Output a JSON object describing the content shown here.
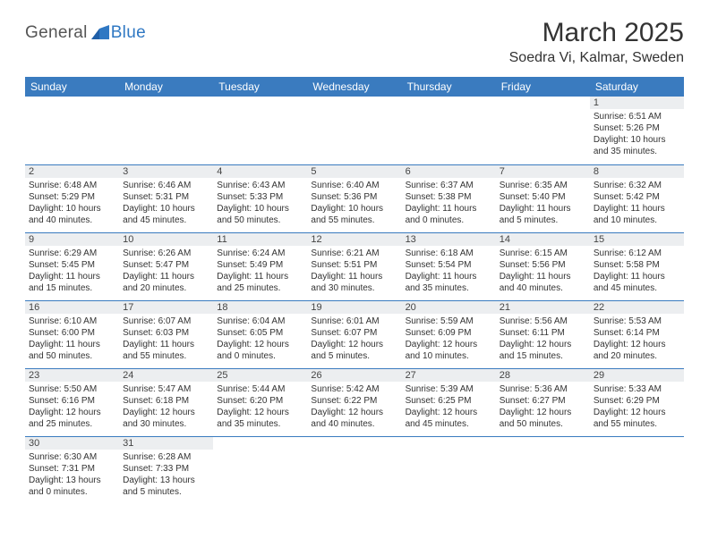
{
  "logo": {
    "general": "General",
    "blue": "Blue",
    "mark_color": "#1f5fa8"
  },
  "title": "March 2025",
  "location": "Soedra Vi, Kalmar, Sweden",
  "header_bg": "#3a7bbf",
  "header_text_color": "#ffffff",
  "cell_border_color": "#3a7bbf",
  "daynum_bg": "#eceef0",
  "background_color": "#ffffff",
  "text_color": "#333333",
  "fonts": {
    "title_size": 30,
    "location_size": 16,
    "header_size": 12,
    "daynum_size": 11,
    "info_size": 10
  },
  "weekdays": [
    "Sunday",
    "Monday",
    "Tuesday",
    "Wednesday",
    "Thursday",
    "Friday",
    "Saturday"
  ],
  "weeks": [
    [
      null,
      null,
      null,
      null,
      null,
      null,
      {
        "n": "1",
        "sunrise": "Sunrise: 6:51 AM",
        "sunset": "Sunset: 5:26 PM",
        "daylight": "Daylight: 10 hours and 35 minutes."
      }
    ],
    [
      {
        "n": "2",
        "sunrise": "Sunrise: 6:48 AM",
        "sunset": "Sunset: 5:29 PM",
        "daylight": "Daylight: 10 hours and 40 minutes."
      },
      {
        "n": "3",
        "sunrise": "Sunrise: 6:46 AM",
        "sunset": "Sunset: 5:31 PM",
        "daylight": "Daylight: 10 hours and 45 minutes."
      },
      {
        "n": "4",
        "sunrise": "Sunrise: 6:43 AM",
        "sunset": "Sunset: 5:33 PM",
        "daylight": "Daylight: 10 hours and 50 minutes."
      },
      {
        "n": "5",
        "sunrise": "Sunrise: 6:40 AM",
        "sunset": "Sunset: 5:36 PM",
        "daylight": "Daylight: 10 hours and 55 minutes."
      },
      {
        "n": "6",
        "sunrise": "Sunrise: 6:37 AM",
        "sunset": "Sunset: 5:38 PM",
        "daylight": "Daylight: 11 hours and 0 minutes."
      },
      {
        "n": "7",
        "sunrise": "Sunrise: 6:35 AM",
        "sunset": "Sunset: 5:40 PM",
        "daylight": "Daylight: 11 hours and 5 minutes."
      },
      {
        "n": "8",
        "sunrise": "Sunrise: 6:32 AM",
        "sunset": "Sunset: 5:42 PM",
        "daylight": "Daylight: 11 hours and 10 minutes."
      }
    ],
    [
      {
        "n": "9",
        "sunrise": "Sunrise: 6:29 AM",
        "sunset": "Sunset: 5:45 PM",
        "daylight": "Daylight: 11 hours and 15 minutes."
      },
      {
        "n": "10",
        "sunrise": "Sunrise: 6:26 AM",
        "sunset": "Sunset: 5:47 PM",
        "daylight": "Daylight: 11 hours and 20 minutes."
      },
      {
        "n": "11",
        "sunrise": "Sunrise: 6:24 AM",
        "sunset": "Sunset: 5:49 PM",
        "daylight": "Daylight: 11 hours and 25 minutes."
      },
      {
        "n": "12",
        "sunrise": "Sunrise: 6:21 AM",
        "sunset": "Sunset: 5:51 PM",
        "daylight": "Daylight: 11 hours and 30 minutes."
      },
      {
        "n": "13",
        "sunrise": "Sunrise: 6:18 AM",
        "sunset": "Sunset: 5:54 PM",
        "daylight": "Daylight: 11 hours and 35 minutes."
      },
      {
        "n": "14",
        "sunrise": "Sunrise: 6:15 AM",
        "sunset": "Sunset: 5:56 PM",
        "daylight": "Daylight: 11 hours and 40 minutes."
      },
      {
        "n": "15",
        "sunrise": "Sunrise: 6:12 AM",
        "sunset": "Sunset: 5:58 PM",
        "daylight": "Daylight: 11 hours and 45 minutes."
      }
    ],
    [
      {
        "n": "16",
        "sunrise": "Sunrise: 6:10 AM",
        "sunset": "Sunset: 6:00 PM",
        "daylight": "Daylight: 11 hours and 50 minutes."
      },
      {
        "n": "17",
        "sunrise": "Sunrise: 6:07 AM",
        "sunset": "Sunset: 6:03 PM",
        "daylight": "Daylight: 11 hours and 55 minutes."
      },
      {
        "n": "18",
        "sunrise": "Sunrise: 6:04 AM",
        "sunset": "Sunset: 6:05 PM",
        "daylight": "Daylight: 12 hours and 0 minutes."
      },
      {
        "n": "19",
        "sunrise": "Sunrise: 6:01 AM",
        "sunset": "Sunset: 6:07 PM",
        "daylight": "Daylight: 12 hours and 5 minutes."
      },
      {
        "n": "20",
        "sunrise": "Sunrise: 5:59 AM",
        "sunset": "Sunset: 6:09 PM",
        "daylight": "Daylight: 12 hours and 10 minutes."
      },
      {
        "n": "21",
        "sunrise": "Sunrise: 5:56 AM",
        "sunset": "Sunset: 6:11 PM",
        "daylight": "Daylight: 12 hours and 15 minutes."
      },
      {
        "n": "22",
        "sunrise": "Sunrise: 5:53 AM",
        "sunset": "Sunset: 6:14 PM",
        "daylight": "Daylight: 12 hours and 20 minutes."
      }
    ],
    [
      {
        "n": "23",
        "sunrise": "Sunrise: 5:50 AM",
        "sunset": "Sunset: 6:16 PM",
        "daylight": "Daylight: 12 hours and 25 minutes."
      },
      {
        "n": "24",
        "sunrise": "Sunrise: 5:47 AM",
        "sunset": "Sunset: 6:18 PM",
        "daylight": "Daylight: 12 hours and 30 minutes."
      },
      {
        "n": "25",
        "sunrise": "Sunrise: 5:44 AM",
        "sunset": "Sunset: 6:20 PM",
        "daylight": "Daylight: 12 hours and 35 minutes."
      },
      {
        "n": "26",
        "sunrise": "Sunrise: 5:42 AM",
        "sunset": "Sunset: 6:22 PM",
        "daylight": "Daylight: 12 hours and 40 minutes."
      },
      {
        "n": "27",
        "sunrise": "Sunrise: 5:39 AM",
        "sunset": "Sunset: 6:25 PM",
        "daylight": "Daylight: 12 hours and 45 minutes."
      },
      {
        "n": "28",
        "sunrise": "Sunrise: 5:36 AM",
        "sunset": "Sunset: 6:27 PM",
        "daylight": "Daylight: 12 hours and 50 minutes."
      },
      {
        "n": "29",
        "sunrise": "Sunrise: 5:33 AM",
        "sunset": "Sunset: 6:29 PM",
        "daylight": "Daylight: 12 hours and 55 minutes."
      }
    ],
    [
      {
        "n": "30",
        "sunrise": "Sunrise: 6:30 AM",
        "sunset": "Sunset: 7:31 PM",
        "daylight": "Daylight: 13 hours and 0 minutes."
      },
      {
        "n": "31",
        "sunrise": "Sunrise: 6:28 AM",
        "sunset": "Sunset: 7:33 PM",
        "daylight": "Daylight: 13 hours and 5 minutes."
      },
      null,
      null,
      null,
      null,
      null
    ]
  ]
}
